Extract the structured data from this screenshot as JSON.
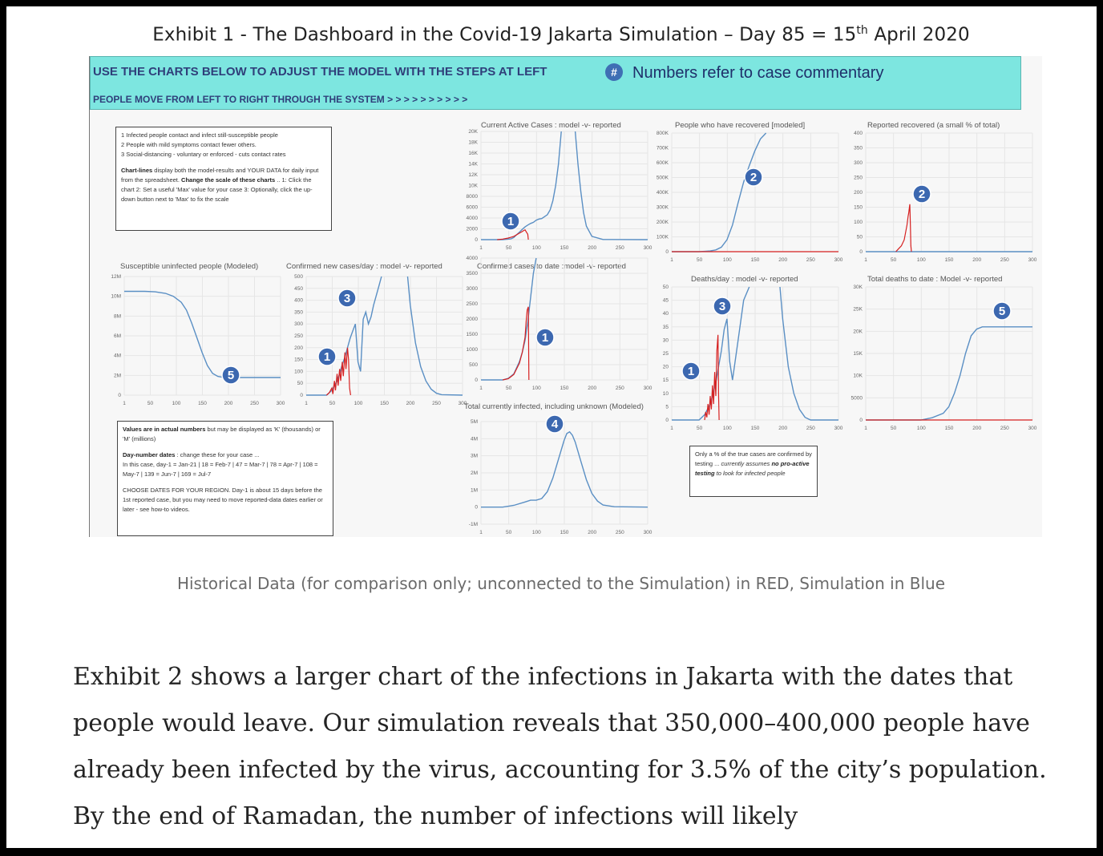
{
  "exhibit": {
    "title_main": "Exhibit 1 - The Dashboard in the Covid-19 Jakarta Simulation – Day 85 = 15",
    "title_sup": "th",
    "title_end": " April 2020"
  },
  "banner": {
    "line1": "USE THE CHARTS BELOW TO ADJUST THE MODEL WITH THE STEPS AT LEFT",
    "hash": "#",
    "note": "Numbers refer to case commentary",
    "line2": "PEOPLE MOVE FROM LEFT TO RIGHT THROUGH THE SYSTEM > > > > > > > > > >"
  },
  "boxes": {
    "steps": {
      "l1": "1 Infected people contact and infect still-susceptible people",
      "l2": "2 People with mild symptoms contact fewer others.",
      "l3": "3 Social-distancing - voluntary or enforced - cuts contact rates",
      "p2_bold": "Chart-lines",
      "p2_a": " display both the model-results and YOUR DATA for daily input from the spreadsheet. ",
      "p2_bold2": "Change the scale of these charts",
      "p2_b": " .. 1: Click the chart 2: Set a useful 'Max' value for your case 3: Optionally, click the up-down button next to 'Max' to fix the scale"
    },
    "values": {
      "p1_bold": "Values are in actual numbers",
      "p1": " but may be displayed as 'K' (thousands) or 'M' (millions)",
      "p2_bold": "Day-number dates",
      "p2": " : change these for your case ...",
      "p2b": "In this case, day-1 = Jan-21 | 18 = Feb-7 | 47 = Mar-7 | 78 = Apr-7 | 108 = May-7 | 139 = Jun-7 | 169 = Jul-7",
      "p3": "CHOOSE DATES FOR YOUR REGION. Day-1 is about 15 days before the 1st reported case, but you may need to move reported-data dates earlier or later - see how-to videos."
    },
    "testing": {
      "a": "Only a % of the true cases are confirmed by testing ... ",
      "b": "currently assumes ",
      "b_bold": "no pro-active testing",
      "c": " to look for infected people"
    }
  },
  "legend_colors": {
    "simulation": "#5a8fc4",
    "historical": "#d62020"
  },
  "chart_data": [
    {
      "id": "active",
      "type": "line",
      "title": "Current Active Cases : model -v- reported",
      "xlim": [
        1,
        300
      ],
      "ylim": [
        0,
        20000
      ],
      "x_ticks": [
        "1",
        "50",
        "100",
        "150",
        "200",
        "250",
        "300"
      ],
      "y_ticks": [
        "0",
        "2000",
        "4000",
        "6000",
        "8000",
        "10K",
        "12K",
        "14K",
        "16K",
        "18K",
        "20K"
      ],
      "marker": "1",
      "series": [
        {
          "color": "#5a8fc4",
          "x": [
            1,
            40,
            55,
            60,
            65,
            70,
            75,
            80,
            85,
            90,
            95,
            100,
            105,
            110,
            115,
            120,
            125,
            130,
            135,
            140,
            145,
            150,
            155,
            160,
            165,
            170,
            175,
            180,
            185,
            190,
            200,
            220,
            300
          ],
          "y": [
            0,
            0,
            150,
            400,
            900,
            1400,
            1900,
            2350,
            2700,
            3000,
            3200,
            3600,
            3800,
            3900,
            4250,
            4600,
            5500,
            7200,
            10000,
            14000,
            20000,
            null,
            null,
            null,
            null,
            20000,
            14000,
            9000,
            5000,
            2500,
            600,
            30,
            0
          ]
        },
        {
          "color": "#d62020",
          "x": [
            30,
            40,
            50,
            60,
            70,
            75,
            78,
            80,
            85,
            86
          ],
          "y": [
            0,
            100,
            300,
            600,
            1200,
            1500,
            1700,
            1800,
            1000,
            0
          ]
        }
      ]
    },
    {
      "id": "recovered",
      "type": "line",
      "title": "People who have recovered [modeled]",
      "xlim": [
        1,
        300
      ],
      "ylim": [
        0,
        800000
      ],
      "x_ticks": [
        "1",
        "50",
        "100",
        "150",
        "200",
        "250",
        "300"
      ],
      "y_ticks": [
        "0",
        "100K",
        "200K",
        "300K",
        "400K",
        "500K",
        "600K",
        "700K",
        "800K"
      ],
      "marker": "2",
      "series": [
        {
          "color": "#5a8fc4",
          "x": [
            1,
            50,
            60,
            70,
            80,
            90,
            100,
            110,
            120,
            130,
            140,
            150,
            160,
            170
          ],
          "y": [
            0,
            0,
            2000,
            5000,
            12000,
            30000,
            80000,
            180000,
            330000,
            470000,
            580000,
            680000,
            760000,
            800000
          ]
        },
        {
          "color": "#d62020",
          "x": [
            1,
            300
          ],
          "y": [
            0,
            0
          ]
        }
      ]
    },
    {
      "id": "reported-recovered",
      "type": "line",
      "title": "Reported recovered (a small % of total)",
      "xlim": [
        1,
        300
      ],
      "ylim": [
        0,
        400
      ],
      "x_ticks": [
        "1",
        "50",
        "100",
        "150",
        "200",
        "250",
        "300"
      ],
      "y_ticks": [
        "0",
        "50",
        "100",
        "150",
        "200",
        "250",
        "300",
        "350",
        "400"
      ],
      "marker": "2",
      "series": [
        {
          "color": "#5a8fc4",
          "x": [
            1,
            300
          ],
          "y": [
            0,
            0
          ]
        },
        {
          "color": "#d62020",
          "x": [
            55,
            60,
            65,
            70,
            72,
            75,
            77,
            78,
            80,
            81,
            82,
            83
          ],
          "y": [
            0,
            10,
            20,
            40,
            60,
            90,
            120,
            130,
            160,
            90,
            20,
            0
          ]
        }
      ]
    },
    {
      "id": "susceptible",
      "type": "line",
      "title": "Susceptible uninfected people (Modeled)",
      "xlim": [
        1,
        300
      ],
      "ylim": [
        0,
        12000000
      ],
      "x_ticks": [
        "1",
        "50",
        "100",
        "150",
        "200",
        "250",
        "300"
      ],
      "y_ticks": [
        "0",
        "2M",
        "4M",
        "6M",
        "8M",
        "10M",
        "12M"
      ],
      "marker": "5",
      "series": [
        {
          "color": "#5a8fc4",
          "x": [
            1,
            40,
            60,
            80,
            95,
            110,
            120,
            130,
            140,
            150,
            160,
            170,
            180,
            190,
            200,
            300
          ],
          "y": [
            10500000,
            10500000,
            10450000,
            10300000,
            10000000,
            9400000,
            8600000,
            7300000,
            5800000,
            4300000,
            3000000,
            2200000,
            1900000,
            1800000,
            1780000,
            1780000
          ]
        }
      ]
    },
    {
      "id": "new-cases",
      "type": "line",
      "title": "Confirmed new cases/day : model -v- reported",
      "xlim": [
        1,
        300
      ],
      "ylim": [
        0,
        500
      ],
      "x_ticks": [
        "1",
        "50",
        "100",
        "150",
        "200",
        "250",
        "300"
      ],
      "y_ticks": [
        "0",
        "50",
        "100",
        "150",
        "200",
        "250",
        "300",
        "350",
        "400",
        "450",
        "500"
      ],
      "markers": [
        "1",
        "3"
      ],
      "series": [
        {
          "color": "#5a8fc4",
          "x": [
            1,
            40,
            50,
            60,
            65,
            70,
            75,
            80,
            85,
            90,
            95,
            100,
            105,
            110,
            115,
            120,
            125,
            130,
            140,
            145,
            150,
            195,
            200,
            210,
            220,
            230,
            240,
            250,
            260,
            300
          ],
          "y": [
            0,
            0,
            20,
            60,
            90,
            130,
            160,
            200,
            240,
            270,
            300,
            140,
            100,
            320,
            350,
            300,
            330,
            380,
            460,
            500,
            null,
            500,
            380,
            220,
            120,
            60,
            25,
            8,
            2,
            0
          ]
        },
        {
          "color": "#d62020",
          "x": [
            40,
            45,
            50,
            52,
            55,
            57,
            60,
            62,
            65,
            67,
            70,
            72,
            75,
            77,
            80,
            82,
            84,
            86
          ],
          "y": [
            0,
            10,
            30,
            5,
            60,
            20,
            90,
            40,
            110,
            60,
            140,
            80,
            180,
            110,
            200,
            150,
            30,
            0
          ]
        }
      ]
    },
    {
      "id": "cases-to-date",
      "type": "line",
      "title": "Confirmed cases to date :model -v- reported",
      "xlim": [
        1,
        300
      ],
      "ylim": [
        0,
        4000
      ],
      "x_ticks": [
        "1",
        "50",
        "100",
        "150",
        "200",
        "250",
        "300"
      ],
      "y_ticks": [
        "0",
        "500",
        "1000",
        "1500",
        "2000",
        "2500",
        "3000",
        "3500",
        "4000"
      ],
      "marker": "1",
      "series": [
        {
          "color": "#5a8fc4",
          "x": [
            1,
            40,
            50,
            60,
            70,
            75,
            80,
            85,
            90,
            95,
            100
          ],
          "y": [
            0,
            0,
            50,
            200,
            600,
            900,
            1300,
            1900,
            2700,
            3500,
            4000
          ]
        },
        {
          "color": "#d62020",
          "x": [
            40,
            50,
            60,
            70,
            75,
            80,
            82,
            84,
            86,
            87
          ],
          "y": [
            0,
            40,
            180,
            550,
            900,
            1400,
            1900,
            2300,
            2400,
            0
          ]
        }
      ]
    },
    {
      "id": "total-infected",
      "type": "line",
      "title": "Total currently infected, including unknown (Modeled)",
      "xlim": [
        1,
        300
      ],
      "ylim": [
        -1000000,
        5000000
      ],
      "x_ticks": [
        "1",
        "50",
        "100",
        "150",
        "200",
        "250",
        "300"
      ],
      "y_ticks": [
        "-1M",
        "0",
        "1M",
        "2M",
        "3M",
        "4M",
        "5M"
      ],
      "marker": "4",
      "series": [
        {
          "color": "#5a8fc4",
          "x": [
            1,
            40,
            60,
            80,
            90,
            100,
            110,
            120,
            130,
            140,
            150,
            155,
            160,
            165,
            170,
            180,
            190,
            200,
            210,
            220,
            240,
            300
          ],
          "y": [
            0,
            0,
            100000,
            300000,
            400000,
            400000,
            500000,
            900000,
            1700000,
            2800000,
            3900000,
            4300000,
            4400000,
            4200000,
            3800000,
            2700000,
            1600000,
            800000,
            350000,
            120000,
            20000,
            0
          ]
        }
      ]
    },
    {
      "id": "deaths-day",
      "type": "line",
      "title": "Deaths/day : model -v- reported",
      "xlim": [
        1,
        300
      ],
      "ylim": [
        0,
        50
      ],
      "x_ticks": [
        "1",
        "50",
        "100",
        "150",
        "200",
        "250",
        "300"
      ],
      "y_ticks": [
        "0",
        "5",
        "10",
        "15",
        "20",
        "25",
        "30",
        "35",
        "40",
        "45",
        "50"
      ],
      "markers": [
        "1",
        "3"
      ],
      "series": [
        {
          "color": "#5a8fc4",
          "x": [
            1,
            50,
            60,
            70,
            80,
            85,
            90,
            95,
            100,
            105,
            110,
            120,
            130,
            140,
            150,
            195,
            200,
            210,
            220,
            230,
            240,
            250,
            300
          ],
          "y": [
            0,
            0,
            2,
            6,
            14,
            20,
            26,
            34,
            38,
            22,
            15,
            30,
            45,
            50,
            null,
            50,
            38,
            20,
            10,
            4,
            1,
            0,
            0
          ]
        },
        {
          "color": "#d62020",
          "x": [
            60,
            62,
            64,
            66,
            68,
            70,
            72,
            74,
            76,
            78,
            80,
            82,
            84,
            85,
            86
          ],
          "y": [
            0,
            3,
            1,
            6,
            2,
            9,
            4,
            13,
            6,
            18,
            9,
            26,
            32,
            10,
            0
          ]
        }
      ]
    },
    {
      "id": "total-deaths",
      "type": "line",
      "title": "Total deaths to date : Model -v- reported",
      "xlim": [
        1,
        300
      ],
      "ylim": [
        0,
        30000
      ],
      "x_ticks": [
        "1",
        "50",
        "100",
        "150",
        "200",
        "250",
        "300"
      ],
      "y_ticks": [
        "0",
        "5000",
        "10K",
        "15K",
        "20K",
        "25K",
        "30K"
      ],
      "marker": "5",
      "series": [
        {
          "color": "#5a8fc4",
          "x": [
            1,
            100,
            120,
            140,
            150,
            160,
            170,
            180,
            190,
            200,
            210,
            220,
            230,
            300
          ],
          "y": [
            0,
            0,
            500,
            1500,
            3000,
            6000,
            10000,
            15000,
            19000,
            20500,
            21000,
            21000,
            21000,
            21000
          ]
        },
        {
          "color": "#d62020",
          "x": [
            1,
            300
          ],
          "y": [
            0,
            0
          ]
        }
      ]
    }
  ],
  "caption": "Historical Data (for comparison only; unconnected to the Simulation) in RED, Simulation in Blue",
  "body_text": "Exhibit 2 shows a larger chart of the infections in Jakarta with the dates that people would leave. Our simulation reveals that 350,000–400,000 people have already been infected by the virus, accounting for 3.5% of the city’s population. By the end of Ramadan, the number of infections will likely"
}
